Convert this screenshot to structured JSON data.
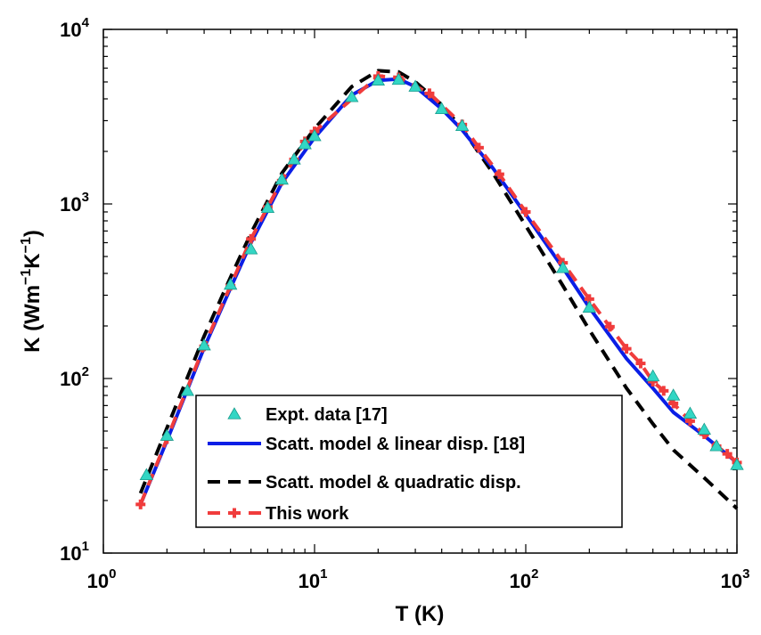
{
  "chart_data": {
    "type": "line",
    "x_scale": "log",
    "y_scale": "log",
    "xlim": [
      1,
      1000
    ],
    "ylim": [
      10,
      10000
    ],
    "x_ticks": [
      1,
      10,
      100,
      1000
    ],
    "y_ticks": [
      10,
      100,
      1000,
      10000
    ],
    "tick_base": "10",
    "x_tick_exponents": [
      "0",
      "1",
      "2",
      "3"
    ],
    "y_tick_exponents": [
      "1",
      "2",
      "3",
      "4"
    ],
    "xlabel": "T (K)",
    "ylabel": {
      "prefix": "K (Wm",
      "exp1": "−1",
      "middle": "K",
      "exp2": "−1",
      "suffix": ")"
    },
    "grid": false,
    "legend_position": "lower-left",
    "series": [
      {
        "name": "Expt. data [17]",
        "style": "markers",
        "marker": "triangle",
        "color": "#33d6c4",
        "x": [
          1.6,
          2.0,
          2.5,
          3.0,
          4.0,
          5.0,
          6.0,
          7.0,
          8.0,
          9.0,
          10,
          15,
          20,
          25,
          30,
          40,
          50,
          150,
          200,
          400,
          500,
          600,
          700,
          800,
          1000
        ],
        "y": [
          28,
          47,
          85,
          155,
          345,
          550,
          950,
          1380,
          1800,
          2200,
          2450,
          4100,
          5100,
          5150,
          4700,
          3500,
          2800,
          430,
          255,
          103,
          80,
          63,
          51,
          41,
          32
        ]
      },
      {
        "name": "Scatt. model & linear disp. [18]",
        "style": "solid",
        "color": "#0a1ee6",
        "x": [
          1.5,
          2,
          3,
          4,
          5,
          7,
          10,
          15,
          20,
          25,
          30,
          40,
          50,
          70,
          100,
          150,
          200,
          300,
          400,
          500,
          700,
          1000
        ],
        "y": [
          19,
          44,
          150,
          330,
          600,
          1320,
          2400,
          4200,
          5100,
          5200,
          4700,
          3500,
          2650,
          1600,
          870,
          430,
          255,
          130,
          88,
          64,
          47,
          33
        ]
      },
      {
        "name": "Scatt. model & quadratic disp.",
        "style": "dashed",
        "color": "#000000",
        "x": [
          1.5,
          2,
          3,
          4,
          5,
          7,
          10,
          15,
          20,
          25,
          30,
          40,
          50,
          70,
          100,
          150,
          200,
          300,
          400,
          500,
          700,
          1000
        ],
        "y": [
          22,
          52,
          175,
          380,
          680,
          1500,
          2700,
          4700,
          5800,
          5700,
          5000,
          3700,
          2700,
          1500,
          750,
          340,
          190,
          88,
          55,
          39,
          27,
          18
        ]
      },
      {
        "name": "This work",
        "style": "dashed-markers",
        "marker": "plus",
        "color": "#f03c3c",
        "x": [
          1.5,
          2,
          3,
          4,
          5,
          6,
          7,
          8,
          9,
          10,
          20,
          25,
          35,
          50,
          60,
          75,
          100,
          150,
          200,
          250,
          300,
          350,
          400,
          450,
          500,
          600,
          700,
          800,
          900,
          1000
        ],
        "y": [
          19,
          45,
          153,
          340,
          630,
          960,
          1360,
          1800,
          2280,
          2600,
          5400,
          5300,
          4300,
          2850,
          2100,
          1480,
          900,
          460,
          285,
          198,
          148,
          122,
          96,
          85,
          72,
          57,
          48,
          41,
          37,
          33
        ]
      }
    ]
  }
}
